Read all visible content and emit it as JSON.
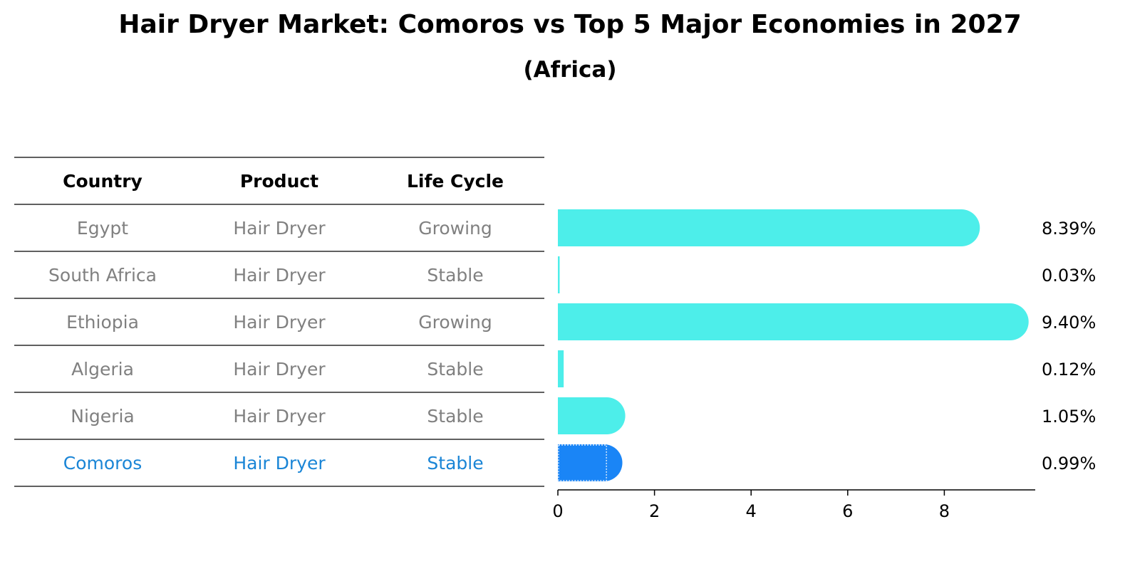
{
  "title": "Hair Dryer Market: Comoros vs Top 5 Major Economies in 2027",
  "subtitle": "(Africa)",
  "colors": {
    "bar": "#4DEEEA",
    "highlight": "#1A85F6",
    "muted_text": "#808080",
    "highlight_text": "#1A85D6"
  },
  "table": {
    "headers": [
      "Country",
      "Product",
      "Life Cycle"
    ],
    "rows": [
      [
        "Egypt",
        "Hair Dryer",
        "Growing"
      ],
      [
        "South Africa",
        "Hair Dryer",
        "Stable"
      ],
      [
        "Ethiopia",
        "Hair Dryer",
        "Growing"
      ],
      [
        "Algeria",
        "Hair Dryer",
        "Stable"
      ],
      [
        "Nigeria",
        "Hair Dryer",
        "Stable"
      ],
      [
        "Comoros",
        "Hair Dryer",
        "Stable"
      ]
    ],
    "highlight_row": 5
  },
  "chart_data": {
    "type": "bar",
    "orientation": "horizontal",
    "categories": [
      "Egypt",
      "South Africa",
      "Ethiopia",
      "Algeria",
      "Nigeria",
      "Comoros"
    ],
    "values": [
      8.39,
      0.03,
      9.4,
      0.12,
      1.05,
      0.99
    ],
    "value_labels": [
      "8.39%",
      "0.03%",
      "9.40%",
      "0.12%",
      "1.05%",
      "0.99%"
    ],
    "highlight": "Comoros",
    "xlim": [
      0,
      9.8
    ],
    "xticks": [
      0,
      2,
      4,
      6,
      8
    ],
    "grid": false
  }
}
